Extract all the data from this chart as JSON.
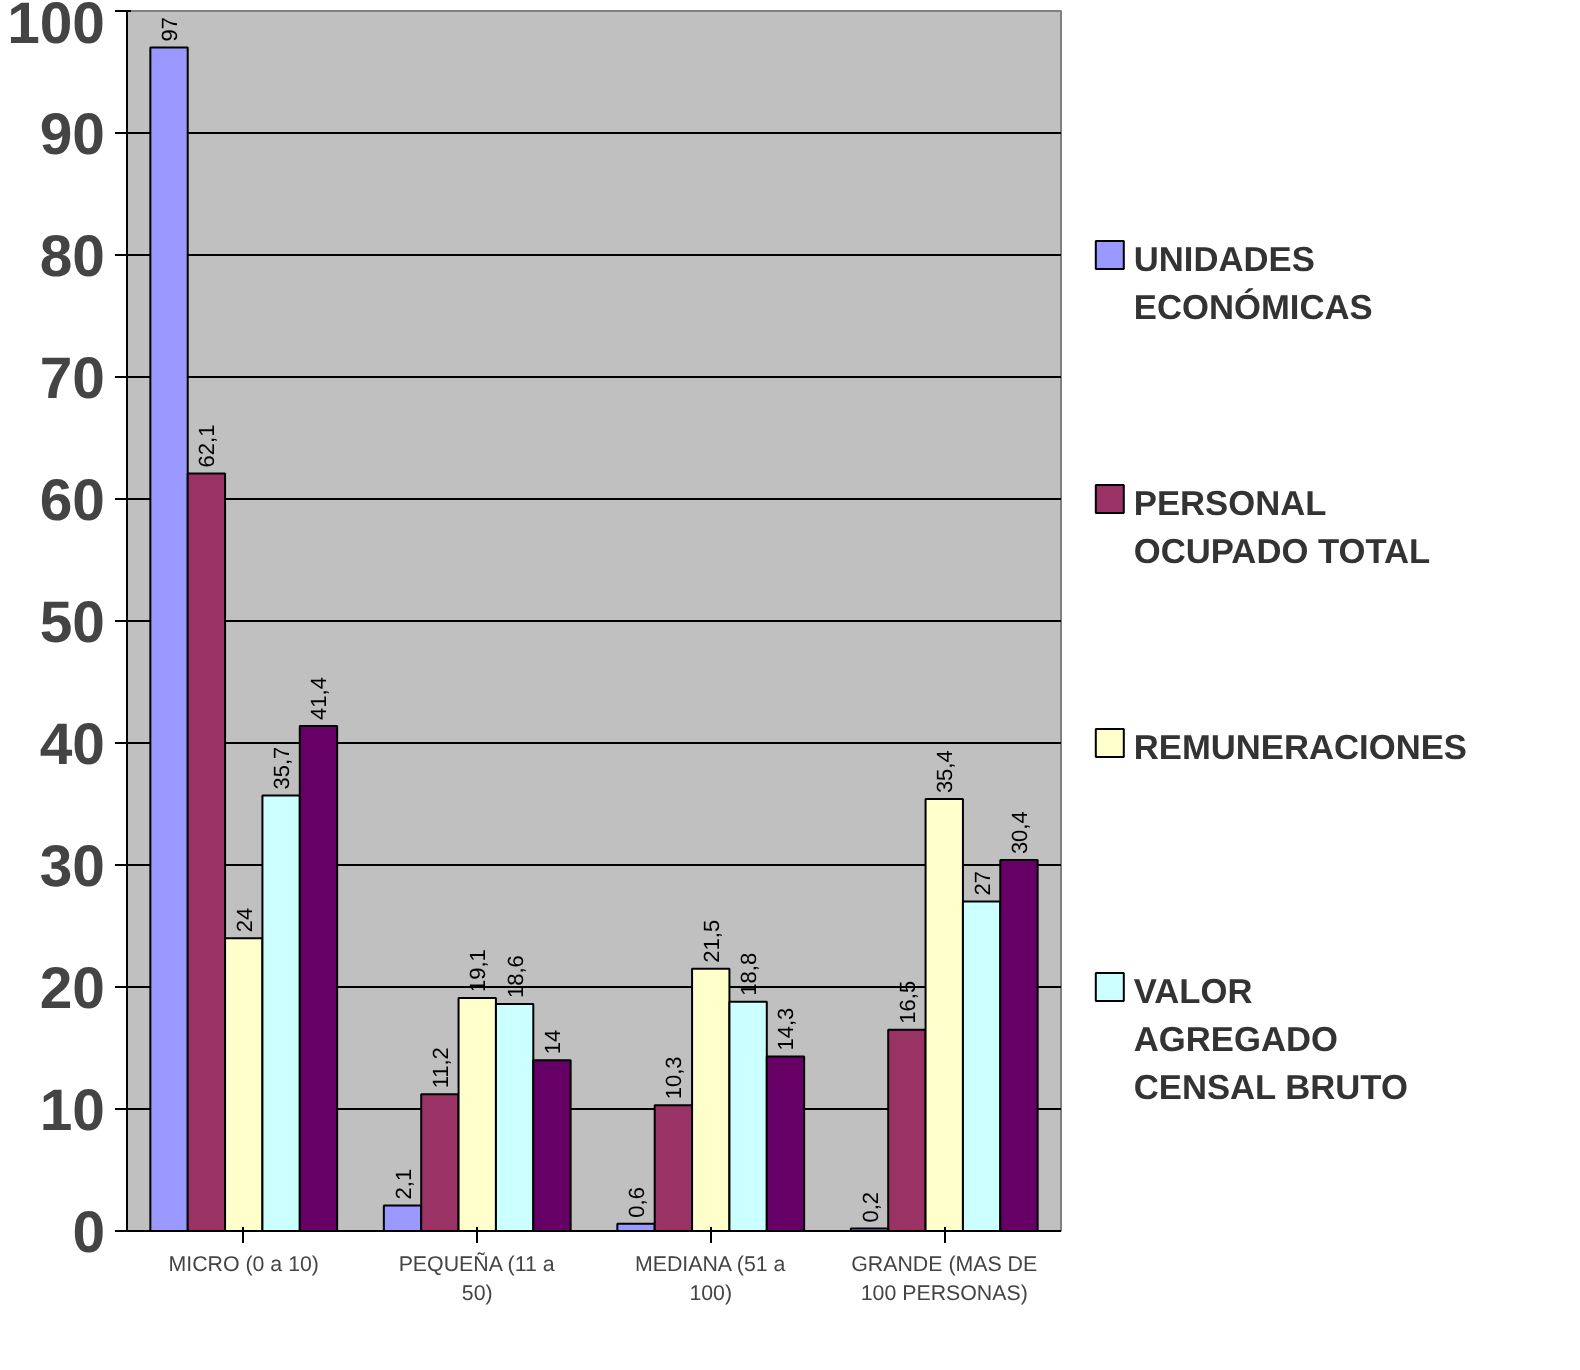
{
  "chart_data": {
    "type": "bar",
    "categories": [
      "MICRO (0 a 10)",
      "PEQUEÑA (11 a 50)",
      "MEDIANA (51 a 100)",
      "GRANDE (MAS DE 100 PERSONAS)"
    ],
    "series": [
      {
        "name": "UNIDADES ECONÓMICAS",
        "color": "#9999ff",
        "values": [
          97,
          2.1,
          0.6,
          0.2
        ],
        "value_labels": [
          "97",
          "2,1",
          "0,6",
          "0,2"
        ]
      },
      {
        "name": "PERSONAL OCUPADO TOTAL",
        "color": "#993366",
        "values": [
          62.1,
          11.2,
          10.3,
          16.5
        ],
        "value_labels": [
          "62,1",
          "11,2",
          "10,3",
          "16,5"
        ]
      },
      {
        "name": "REMUNERACIONES",
        "color": "#ffffcc",
        "values": [
          24,
          19.1,
          21.5,
          35.4
        ],
        "value_labels": [
          "24",
          "19,1",
          "21,5",
          "35,4"
        ]
      },
      {
        "name": "VALOR AGREGADO CENSAL BRUTO",
        "color": "#ccffff",
        "values": [
          35.7,
          18.6,
          18.8,
          27
        ],
        "value_labels": [
          "35,7",
          "18,6",
          "18,8",
          "27"
        ]
      },
      {
        "color": "#660066",
        "values": [
          41.4,
          14,
          14.3,
          30.4
        ],
        "value_labels": [
          "41,4",
          "14",
          "14,3",
          "30,4"
        ]
      }
    ],
    "ylim": [
      0,
      100
    ],
    "yticks": [
      0,
      10,
      20,
      30,
      40,
      50,
      60,
      70,
      80,
      90,
      100
    ],
    "grid": "y",
    "legend": "right"
  }
}
